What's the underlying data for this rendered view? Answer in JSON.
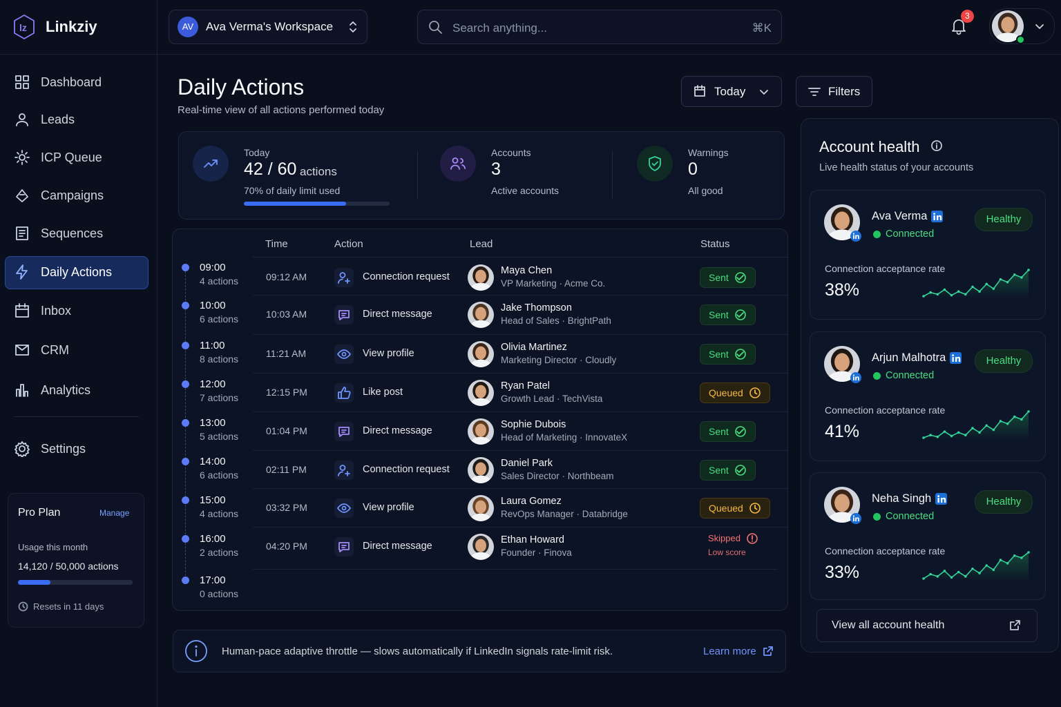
{
  "app": {
    "name": "Linkziy"
  },
  "workspace": {
    "initials": "AV",
    "name": "Ava Verma's Workspace"
  },
  "search": {
    "placeholder": "Search anything...",
    "shortcut": "⌘K"
  },
  "notifications": {
    "count": 3
  },
  "nav": {
    "items": [
      "Dashboard",
      "Leads",
      "ICP Queue",
      "Campaigns",
      "Sequences",
      "Daily Actions",
      "Inbox",
      "CRM",
      "Analytics"
    ],
    "active": 5,
    "settings": "Settings"
  },
  "plan": {
    "title": "Pro Plan",
    "manage": "Manage",
    "usage_label": "Usage this month",
    "used": 14120,
    "limit": 50000,
    "usage_text": "14,120 / 50,000 actions",
    "resets": "Resets in 11 days"
  },
  "header": {
    "title": "Daily Actions",
    "subtitle": "Real-time view of all actions performed today",
    "date_filter": "Today",
    "filters": "Filters"
  },
  "stats": {
    "today": {
      "label": "Today",
      "value": 42,
      "limit": 60,
      "value_text": "42 / 60",
      "unit": "actions",
      "note": "70% of daily limit used"
    },
    "accounts": {
      "label": "Accounts",
      "value": 3,
      "note": "Active accounts"
    },
    "warnings": {
      "label": "Warnings",
      "value": 0,
      "note": "All good"
    }
  },
  "table": {
    "headers": [
      "Time",
      "Action",
      "Lead",
      "Status"
    ],
    "hours": [
      {
        "time": "09:00",
        "count": "4 actions"
      },
      {
        "time": "10:00",
        "count": "6 actions"
      },
      {
        "time": "11:00",
        "count": "8 actions"
      },
      {
        "time": "12:00",
        "count": "7 actions"
      },
      {
        "time": "13:00",
        "count": "5 actions"
      },
      {
        "time": "14:00",
        "count": "6 actions"
      },
      {
        "time": "15:00",
        "count": "4 actions"
      },
      {
        "time": "16:00",
        "count": "2 actions"
      },
      {
        "time": "17:00",
        "count": "0 actions"
      }
    ],
    "rows": [
      {
        "time": "09:12 AM",
        "action": "Connection request",
        "name": "Maya Chen",
        "role": "VP Marketing · Acme Co.",
        "status": "Sent"
      },
      {
        "time": "10:03 AM",
        "action": "Direct message",
        "name": "Jake Thompson",
        "role": "Head of Sales · BrightPath",
        "status": "Sent"
      },
      {
        "time": "11:21 AM",
        "action": "View profile",
        "name": "Olivia Martinez",
        "role": "Marketing Director · Cloudly",
        "status": "Sent"
      },
      {
        "time": "12:15 PM",
        "action": "Like post",
        "name": "Ryan Patel",
        "role": "Growth Lead · TechVista",
        "status": "Queued"
      },
      {
        "time": "01:04 PM",
        "action": "Direct message",
        "name": "Sophie Dubois",
        "role": "Head of Marketing · InnovateX",
        "status": "Sent"
      },
      {
        "time": "02:11 PM",
        "action": "Connection request",
        "name": "Daniel Park",
        "role": "Sales Director · Northbeam",
        "status": "Sent"
      },
      {
        "time": "03:32 PM",
        "action": "View profile",
        "name": "Laura Gomez",
        "role": "RevOps Manager · Databridge",
        "status": "Queued"
      },
      {
        "time": "04:20 PM",
        "action": "Direct message",
        "name": "Ethan Howard",
        "role": "Founder · Finova",
        "status": "Skipped",
        "note": "Low score"
      }
    ]
  },
  "banner": {
    "text": "Human-pace adaptive throttle — slows automatically if LinkedIn signals rate-limit risk.",
    "link": "Learn more"
  },
  "account_health": {
    "title": "Account health",
    "subtitle": "Live health status of your accounts",
    "accounts": [
      {
        "name": "Ava Verma",
        "status": "Connected",
        "badge": "Healthy",
        "rate_label": "Connection acceptance rate",
        "rate": "38%",
        "trend": [
          10,
          14,
          12,
          17,
          11,
          15,
          12,
          20,
          15,
          23,
          18,
          28,
          25,
          33,
          30,
          38
        ]
      },
      {
        "name": "Arjun Malhotra",
        "status": "Connected",
        "badge": "Healthy",
        "rate_label": "Connection acceptance rate",
        "rate": "41%",
        "trend": [
          10,
          13,
          11,
          17,
          12,
          16,
          13,
          21,
          16,
          24,
          19,
          29,
          26,
          34,
          31,
          40
        ]
      },
      {
        "name": "Neha Singh",
        "status": "Connected",
        "badge": "Healthy",
        "rate_label": "Connection acceptance rate",
        "rate": "33%",
        "trend": [
          10,
          14,
          12,
          17,
          11,
          16,
          12,
          19,
          15,
          22,
          18,
          27,
          24,
          31,
          29,
          34
        ]
      }
    ],
    "footer": "View all account health"
  }
}
